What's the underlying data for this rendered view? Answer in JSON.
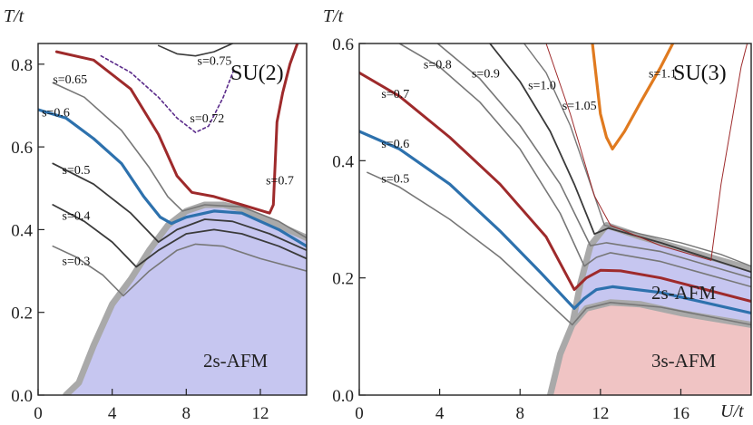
{
  "chart_data": [
    {
      "type": "line",
      "title": "SU(2)",
      "xlabel": "",
      "ylabel": "T/t",
      "xlim": [
        0,
        14.5
      ],
      "ylim": [
        0,
        0.85
      ],
      "xticks": [
        0,
        4,
        8,
        12
      ],
      "yticks": [
        0.0,
        0.2,
        0.4,
        0.6,
        0.8
      ],
      "xtick_labels": [
        "0",
        "4",
        "8",
        "12"
      ],
      "ytick_labels": [
        "0.0",
        "0.2",
        "0.4",
        "0.6",
        "0.8"
      ],
      "region_label": "2s-AFM",
      "colors": {
        "region": "#c6c6f0",
        "boundary": "#a9a9a9",
        "gray": "#777777",
        "dark": "#3a3a3a",
        "red": "#9e2a2b",
        "blue": "#2d71ad",
        "purple": "#5a2a8a"
      },
      "boundary": [
        [
          1.5,
          0
        ],
        [
          2.2,
          0.03
        ],
        [
          3,
          0.12
        ],
        [
          4,
          0.22
        ],
        [
          5,
          0.28
        ],
        [
          6,
          0.35
        ],
        [
          7,
          0.41
        ],
        [
          8,
          0.445
        ],
        [
          9,
          0.46
        ],
        [
          10,
          0.46
        ],
        [
          11,
          0.45
        ],
        [
          12,
          0.43
        ],
        [
          13,
          0.41
        ],
        [
          14.5,
          0.38
        ]
      ],
      "series": [
        {
          "name": "s=0.3",
          "label": "s=0.3",
          "color": "gray",
          "width": 1.6,
          "points": [
            [
              0.8,
              0.36
            ],
            [
              2,
              0.335
            ],
            [
              3.5,
              0.29
            ],
            [
              4.6,
              0.24
            ],
            [
              6,
              0.3
            ],
            [
              7.5,
              0.35
            ],
            [
              8.5,
              0.365
            ],
            [
              10,
              0.36
            ],
            [
              12,
              0.33
            ],
            [
              14.5,
              0.3
            ]
          ]
        },
        {
          "name": "s=0.4",
          "label": "s=0.4",
          "color": "dark",
          "width": 1.8,
          "points": [
            [
              0.8,
              0.46
            ],
            [
              2.5,
              0.42
            ],
            [
              4,
              0.37
            ],
            [
              5.3,
              0.31
            ],
            [
              6.5,
              0.35
            ],
            [
              8,
              0.39
            ],
            [
              9.5,
              0.4
            ],
            [
              11,
              0.39
            ],
            [
              13,
              0.36
            ],
            [
              14.5,
              0.33
            ]
          ]
        },
        {
          "name": "s=0.5",
          "label": "s=0.5",
          "color": "dark",
          "width": 1.8,
          "points": [
            [
              0.8,
              0.56
            ],
            [
              3,
              0.51
            ],
            [
              5,
              0.44
            ],
            [
              6.5,
              0.37
            ],
            [
              7.5,
              0.4
            ],
            [
              9,
              0.425
            ],
            [
              10.5,
              0.42
            ],
            [
              12.5,
              0.39
            ],
            [
              14.5,
              0.35
            ]
          ]
        },
        {
          "name": "s=0.6",
          "label": "s=0.6",
          "color": "blue",
          "width": 3.2,
          "points": [
            [
              0,
              0.69
            ],
            [
              1.5,
              0.67
            ],
            [
              3,
              0.62
            ],
            [
              4.5,
              0.56
            ],
            [
              5.7,
              0.48
            ],
            [
              6.6,
              0.43
            ],
            [
              7.2,
              0.415
            ],
            [
              8,
              0.43
            ],
            [
              9.5,
              0.445
            ],
            [
              11,
              0.44
            ],
            [
              13,
              0.4
            ],
            [
              14.5,
              0.36
            ]
          ]
        },
        {
          "name": "s=0.65",
          "label": "s=0.65",
          "color": "gray",
          "width": 1.6,
          "points": [
            [
              0.8,
              0.755
            ],
            [
              2.5,
              0.72
            ],
            [
              4.5,
              0.64
            ],
            [
              6,
              0.55
            ],
            [
              7,
              0.48
            ],
            [
              7.8,
              0.445
            ],
            [
              9,
              0.46
            ],
            [
              11,
              0.455
            ],
            [
              13,
              0.42
            ],
            [
              14.5,
              0.38
            ]
          ]
        },
        {
          "name": "s=0.7",
          "label": "s=0.7",
          "color": "red",
          "width": 3.0,
          "points": [
            [
              1,
              0.83
            ],
            [
              3,
              0.81
            ],
            [
              5,
              0.74
            ],
            [
              6.5,
              0.63
            ],
            [
              7.5,
              0.53
            ],
            [
              8.3,
              0.49
            ],
            [
              9.5,
              0.48
            ],
            [
              11,
              0.46
            ],
            [
              12.5,
              0.44
            ],
            [
              12.7,
              0.46
            ],
            [
              12.8,
              0.56
            ],
            [
              12.9,
              0.66
            ],
            [
              13.2,
              0.73
            ],
            [
              13.6,
              0.8
            ],
            [
              14,
              0.85
            ]
          ]
        },
        {
          "name": "s=0.72",
          "label": "s=0.72",
          "color": "purple",
          "width": 1.6,
          "dashed": true,
          "points": [
            [
              3.4,
              0.82
            ],
            [
              5,
              0.78
            ],
            [
              6.5,
              0.72
            ],
            [
              7.5,
              0.67
            ],
            [
              8.5,
              0.635
            ],
            [
              9.2,
              0.65
            ],
            [
              10,
              0.72
            ],
            [
              10.6,
              0.79
            ]
          ]
        },
        {
          "name": "s=0.75",
          "label": "s=0.75",
          "color": "dark",
          "width": 1.6,
          "points": [
            [
              6.5,
              0.845
            ],
            [
              7.5,
              0.825
            ],
            [
              8.5,
              0.82
            ],
            [
              9.5,
              0.83
            ],
            [
              10.5,
              0.85
            ]
          ]
        }
      ],
      "label_positions_data": {
        "s=0.3": [
          1.3,
          0.325
        ],
        "s=0.4": [
          1.3,
          0.435
        ],
        "s=0.5": [
          1.3,
          0.545
        ],
        "s=0.6": [
          0.2,
          0.685
        ],
        "s=0.65": [
          0.8,
          0.765
        ],
        "s=0.7": [
          12.3,
          0.52
        ],
        "s=0.72": [
          8.2,
          0.67
        ],
        "s=0.75": [
          8.6,
          0.81
        ]
      }
    },
    {
      "type": "line",
      "title": "SU(3)",
      "xlabel": "U/t",
      "ylabel": "T/t",
      "xlim": [
        0,
        19.5
      ],
      "ylim": [
        0,
        0.6
      ],
      "xticks": [
        0,
        4,
        8,
        12,
        16
      ],
      "yticks": [
        0.0,
        0.2,
        0.4,
        0.6
      ],
      "xtick_labels": [
        "0",
        "4",
        "8",
        "12",
        "16"
      ],
      "ytick_labels": [
        "0.0",
        "0.2",
        "0.4",
        "0.6"
      ],
      "region_labels": [
        "2s-AFM",
        "3s-AFM"
      ],
      "colors": {
        "region3": "#f0c4c4",
        "region2": "#c6c6f0",
        "boundary": "#a9a9a9",
        "gray": "#777777",
        "dark": "#3a3a3a",
        "red": "#9e2a2b",
        "blue": "#2d71ad",
        "orange": "#e07a1f",
        "thin_red": "#9e2a2b"
      },
      "boundary_lower": [
        [
          9.5,
          0
        ],
        [
          10,
          0.07
        ],
        [
          10.6,
          0.12
        ],
        [
          11.3,
          0.148
        ],
        [
          12.5,
          0.158
        ],
        [
          14,
          0.155
        ],
        [
          16,
          0.14
        ],
        [
          19.5,
          0.12
        ]
      ],
      "boundary_upper": [
        [
          10.6,
          0.12
        ],
        [
          11,
          0.19
        ],
        [
          11.5,
          0.255
        ],
        [
          12.3,
          0.29
        ],
        [
          14,
          0.27
        ],
        [
          16,
          0.25
        ],
        [
          18,
          0.23
        ],
        [
          19.5,
          0.215
        ]
      ],
      "series": [
        {
          "name": "s=0.5",
          "label": "s=0.5",
          "color": "gray",
          "width": 1.6,
          "points": [
            [
              0.4,
              0.38
            ],
            [
              2,
              0.355
            ],
            [
              4.5,
              0.3
            ],
            [
              7,
              0.235
            ],
            [
              9.5,
              0.155
            ],
            [
              10.6,
              0.12
            ],
            [
              11.3,
              0.148
            ],
            [
              12.5,
              0.158
            ],
            [
              15,
              0.15
            ],
            [
              19.5,
              0.12
            ]
          ]
        },
        {
          "name": "s=0.6",
          "label": "s=0.6",
          "color": "blue",
          "width": 3.2,
          "points": [
            [
              0,
              0.45
            ],
            [
              2,
              0.42
            ],
            [
              4.5,
              0.36
            ],
            [
              7,
              0.28
            ],
            [
              9,
              0.21
            ],
            [
              10.7,
              0.148
            ],
            [
              11.2,
              0.165
            ],
            [
              11.8,
              0.18
            ],
            [
              12.6,
              0.185
            ],
            [
              15,
              0.175
            ],
            [
              19.5,
              0.14
            ]
          ]
        },
        {
          "name": "s=0.7",
          "label": "s=0.7",
          "color": "red",
          "width": 3.0,
          "points": [
            [
              0,
              0.55
            ],
            [
              2,
              0.51
            ],
            [
              4.5,
              0.44
            ],
            [
              7,
              0.36
            ],
            [
              9.3,
              0.27
            ],
            [
              10.7,
              0.18
            ],
            [
              11.3,
              0.2
            ],
            [
              12,
              0.213
            ],
            [
              13,
              0.212
            ],
            [
              15,
              0.2
            ],
            [
              19.5,
              0.16
            ]
          ]
        },
        {
          "name": "s=0.8",
          "label": "s=0.8",
          "color": "gray",
          "width": 1.6,
          "points": [
            [
              2,
              0.6
            ],
            [
              4,
              0.56
            ],
            [
              6,
              0.5
            ],
            [
              8,
              0.42
            ],
            [
              10,
              0.31
            ],
            [
              11.2,
              0.22
            ],
            [
              11.8,
              0.235
            ],
            [
              12.5,
              0.243
            ],
            [
              15,
              0.228
            ],
            [
              19.5,
              0.185
            ]
          ]
        },
        {
          "name": "s=0.9",
          "label": "s=0.9",
          "color": "gray",
          "width": 1.6,
          "points": [
            [
              3.9,
              0.6
            ],
            [
              6,
              0.54
            ],
            [
              8,
              0.46
            ],
            [
              10,
              0.36
            ],
            [
              11.5,
              0.255
            ],
            [
              12.3,
              0.26
            ],
            [
              15,
              0.245
            ],
            [
              19.5,
              0.2
            ]
          ]
        },
        {
          "name": "s=1.0",
          "label": "s=1.0",
          "color": "dark",
          "width": 1.8,
          "points": [
            [
              6.5,
              0.6
            ],
            [
              8,
              0.535
            ],
            [
              9.5,
              0.45
            ],
            [
              10.7,
              0.36
            ],
            [
              11.7,
              0.275
            ],
            [
              12.4,
              0.285
            ],
            [
              15,
              0.26
            ],
            [
              19.5,
              0.21
            ]
          ]
        },
        {
          "name": "s=1.05",
          "label": "s=1.05",
          "color": "gray",
          "width": 1.4,
          "points": [
            [
              8.2,
              0.6
            ],
            [
              9.3,
              0.55
            ],
            [
              10.5,
              0.46
            ],
            [
              11.4,
              0.37
            ],
            [
              12.2,
              0.29
            ],
            [
              14,
              0.275
            ],
            [
              16,
              0.26
            ],
            [
              18,
              0.24
            ],
            [
              19.5,
              0.22
            ]
          ]
        },
        {
          "name": "s=1.1",
          "label": "s=1.1",
          "color": "orange",
          "width": 3.2,
          "points": [
            [
              11.6,
              0.6
            ],
            [
              12,
              0.48
            ],
            [
              12.3,
              0.44
            ],
            [
              12.6,
              0.42
            ],
            [
              13.2,
              0.45
            ],
            [
              14,
              0.5
            ],
            [
              15,
              0.56
            ],
            [
              15.6,
              0.6
            ]
          ]
        },
        {
          "name": "s=1.1 (thin)",
          "label": "",
          "color": "thin_red",
          "width": 1.0,
          "points": [
            [
              9.3,
              0.6
            ],
            [
              10.5,
              0.48
            ],
            [
              11.7,
              0.34
            ],
            [
              12.5,
              0.29
            ],
            [
              15,
              0.255
            ],
            [
              17.5,
              0.23
            ]
          ]
        },
        {
          "name": "s=1.1 (thin right)",
          "label": "",
          "color": "thin_red",
          "width": 1.0,
          "points": [
            [
              17.5,
              0.23
            ],
            [
              18,
              0.36
            ],
            [
              18.6,
              0.48
            ],
            [
              19,
              0.56
            ],
            [
              19.3,
              0.6
            ]
          ]
        }
      ],
      "label_positions_data": {
        "s=0.5": [
          1.1,
          0.37
        ],
        "s=0.6": [
          1.1,
          0.43
        ],
        "s=0.7": [
          1.1,
          0.515
        ],
        "s=0.8": [
          3.2,
          0.565
        ],
        "s=0.9": [
          5.6,
          0.55
        ],
        "s=1.0": [
          8.4,
          0.53
        ],
        "s=1.05": [
          10.1,
          0.495
        ],
        "s=1.1": [
          14.4,
          0.55
        ]
      }
    }
  ]
}
